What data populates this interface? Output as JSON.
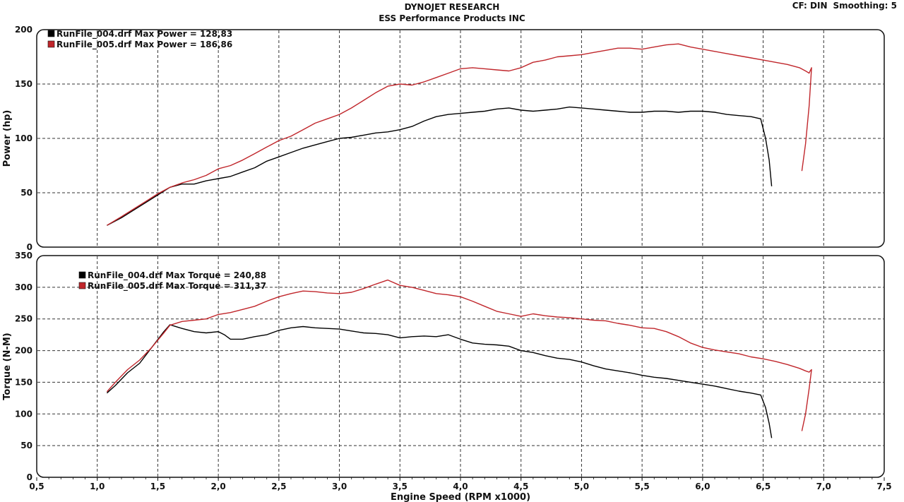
{
  "header": {
    "title": "DYNOJET RESEARCH",
    "subtitle": "ESS Performance Products INC",
    "cf_label": "CF: DIN",
    "smoothing_label": "Smoothing: 5"
  },
  "colors": {
    "run_004": "#000000",
    "run_005": "#c0262b"
  },
  "chart_data": [
    {
      "type": "line",
      "ylabel": "Power (hp)",
      "xlabel": "",
      "xlim": [
        0.5,
        7.5
      ],
      "ylim": [
        0,
        200
      ],
      "yticks": [
        "0",
        "50",
        "100",
        "150",
        "200"
      ],
      "grid": true,
      "legend": "top-left",
      "legend_entries": [
        "RunFile_004.drf Max Power = 128,83",
        "RunFile_005.drf Max Power = 186,86"
      ],
      "series": [
        {
          "name": "RunFile_004.drf",
          "x": [
            1.08,
            1.2,
            1.3,
            1.4,
            1.5,
            1.6,
            1.7,
            1.8,
            1.9,
            2.0,
            2.1,
            2.2,
            2.3,
            2.4,
            2.5,
            2.6,
            2.7,
            2.8,
            2.9,
            3.0,
            3.1,
            3.2,
            3.3,
            3.4,
            3.5,
            3.6,
            3.7,
            3.8,
            3.9,
            4.0,
            4.1,
            4.2,
            4.3,
            4.4,
            4.5,
            4.6,
            4.7,
            4.8,
            4.9,
            5.0,
            5.1,
            5.2,
            5.3,
            5.4,
            5.5,
            5.6,
            5.7,
            5.8,
            5.9,
            6.0,
            6.1,
            6.2,
            6.3,
            6.4,
            6.48,
            6.52,
            6.55,
            6.57
          ],
          "values": [
            20,
            27,
            34,
            41,
            48,
            55,
            58,
            58,
            61,
            63,
            65,
            69,
            73,
            79,
            83,
            87,
            91,
            94,
            97,
            100,
            101,
            103,
            105,
            106,
            108,
            111,
            116,
            120,
            122,
            123,
            124,
            125,
            127,
            128,
            126,
            125,
            126,
            127,
            128.8,
            128,
            127,
            126,
            125,
            124,
            124,
            125,
            125,
            124,
            125,
            125,
            124,
            122,
            121,
            120,
            118,
            100,
            80,
            56
          ]
        },
        {
          "name": "RunFile_005.drf",
          "x": [
            1.08,
            1.2,
            1.3,
            1.4,
            1.5,
            1.6,
            1.7,
            1.8,
            1.9,
            2.0,
            2.1,
            2.2,
            2.3,
            2.4,
            2.5,
            2.6,
            2.7,
            2.8,
            2.9,
            3.0,
            3.1,
            3.2,
            3.3,
            3.4,
            3.5,
            3.6,
            3.7,
            3.8,
            3.9,
            4.0,
            4.1,
            4.2,
            4.3,
            4.4,
            4.5,
            4.6,
            4.7,
            4.8,
            4.9,
            5.0,
            5.1,
            5.2,
            5.3,
            5.4,
            5.5,
            5.6,
            5.7,
            5.8,
            5.9,
            6.0,
            6.1,
            6.2,
            6.3,
            6.4,
            6.5,
            6.6,
            6.7,
            6.8,
            6.85,
            6.88,
            6.9,
            6.88,
            6.85,
            6.82
          ],
          "values": [
            20,
            28,
            35,
            42,
            49,
            55,
            59,
            62,
            66,
            72,
            75,
            80,
            86,
            92,
            98,
            102,
            108,
            114,
            118,
            122,
            128,
            135,
            142,
            148,
            150,
            149,
            152,
            156,
            160,
            164,
            165,
            164,
            163,
            162,
            165,
            170,
            172,
            175,
            176,
            177,
            179,
            181,
            183,
            183,
            182,
            184,
            186,
            186.9,
            184,
            182,
            180,
            178,
            176,
            174,
            172,
            170,
            168,
            165,
            162,
            160,
            165,
            130,
            95,
            70
          ]
        }
      ]
    },
    {
      "type": "line",
      "ylabel": "Torque (N-M)",
      "xlabel": "Engine Speed (RPM x1000)",
      "xlim": [
        0.5,
        7.5
      ],
      "ylim": [
        0,
        350
      ],
      "xticks": [
        "0,5",
        "1,0",
        "1,5",
        "2,0",
        "2,5",
        "3,0",
        "3,5",
        "4,0",
        "4,5",
        "5,0",
        "5,5",
        "6,0",
        "6,5",
        "7,0",
        "7,5"
      ],
      "yticks": [
        "0",
        "50",
        "100",
        "150",
        "200",
        "250",
        "300",
        "350"
      ],
      "grid": true,
      "legend": "top-left",
      "legend_entries": [
        "RunFile_004.drf Max Torque = 240,88",
        "RunFile_005.drf Max Torque = 311,37"
      ],
      "series": [
        {
          "name": "RunFile_004.drf",
          "x": [
            1.08,
            1.15,
            1.25,
            1.35,
            1.45,
            1.55,
            1.6,
            1.7,
            1.8,
            1.9,
            2.0,
            2.05,
            2.1,
            2.2,
            2.3,
            2.4,
            2.5,
            2.6,
            2.7,
            2.8,
            2.9,
            3.0,
            3.1,
            3.2,
            3.3,
            3.4,
            3.5,
            3.6,
            3.7,
            3.8,
            3.9,
            4.0,
            4.1,
            4.2,
            4.3,
            4.4,
            4.5,
            4.6,
            4.7,
            4.8,
            4.9,
            5.0,
            5.1,
            5.2,
            5.3,
            5.4,
            5.5,
            5.6,
            5.7,
            5.8,
            5.9,
            6.0,
            6.1,
            6.2,
            6.3,
            6.4,
            6.48,
            6.52,
            6.55,
            6.57
          ],
          "values": [
            133,
            145,
            165,
            180,
            205,
            230,
            240.9,
            235,
            230,
            228,
            230,
            225,
            218,
            218,
            222,
            225,
            232,
            236,
            238,
            236,
            235,
            234,
            231,
            228,
            227,
            225,
            220,
            222,
            223,
            222,
            225,
            218,
            212,
            210,
            209,
            207,
            200,
            197,
            192,
            188,
            186,
            182,
            176,
            171,
            168,
            165,
            161,
            158,
            156,
            153,
            150,
            147,
            144,
            140,
            136,
            133,
            130,
            110,
            85,
            62
          ]
        },
        {
          "name": "RunFile_005.drf",
          "x": [
            1.08,
            1.15,
            1.25,
            1.35,
            1.45,
            1.55,
            1.6,
            1.7,
            1.8,
            1.9,
            2.0,
            2.1,
            2.2,
            2.3,
            2.4,
            2.5,
            2.6,
            2.7,
            2.8,
            2.9,
            3.0,
            3.1,
            3.2,
            3.3,
            3.4,
            3.5,
            3.6,
            3.7,
            3.8,
            3.9,
            4.0,
            4.1,
            4.2,
            4.3,
            4.4,
            4.5,
            4.6,
            4.7,
            4.8,
            4.9,
            5.0,
            5.1,
            5.2,
            5.3,
            5.4,
            5.5,
            5.6,
            5.7,
            5.8,
            5.9,
            6.0,
            6.1,
            6.2,
            6.3,
            6.4,
            6.5,
            6.6,
            6.7,
            6.8,
            6.85,
            6.88,
            6.9,
            6.88,
            6.85,
            6.82
          ],
          "values": [
            135,
            150,
            170,
            185,
            205,
            228,
            240,
            246,
            248,
            250,
            257,
            260,
            265,
            270,
            278,
            285,
            290,
            294,
            293,
            291,
            290,
            292,
            298,
            305,
            311.4,
            303,
            300,
            295,
            290,
            288,
            285,
            278,
            270,
            262,
            258,
            254,
            258,
            255,
            253,
            252,
            250,
            248,
            247,
            243,
            240,
            236,
            235,
            230,
            222,
            212,
            205,
            201,
            198,
            195,
            190,
            187,
            183,
            178,
            172,
            168,
            166,
            170,
            140,
            100,
            73
          ]
        }
      ]
    }
  ]
}
